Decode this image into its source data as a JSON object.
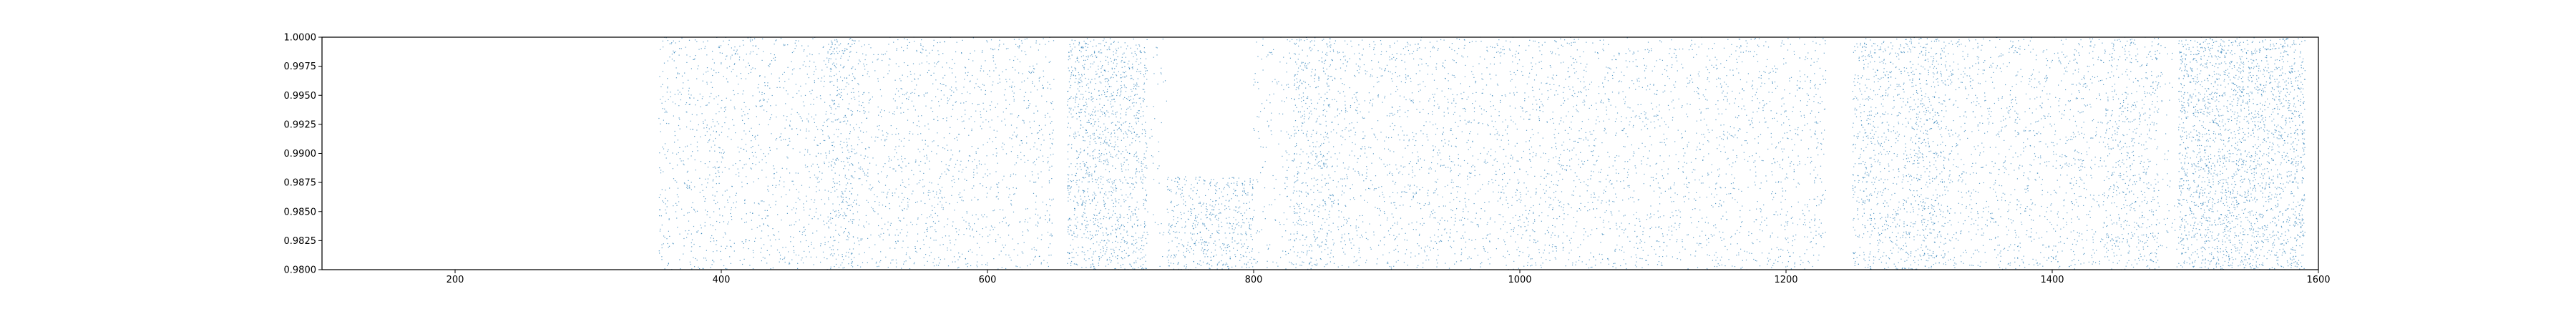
{
  "chart_data": {
    "type": "scatter",
    "title": "",
    "xlabel": "",
    "ylabel": "",
    "xlim": [
      100,
      1600
    ],
    "ylim": [
      0.98,
      1.0
    ],
    "grid": false,
    "legend": "none",
    "x_ticks": [
      200,
      400,
      600,
      800,
      1000,
      1200,
      1400,
      1600
    ],
    "x_tick_labels": [
      "200",
      "400",
      "600",
      "800",
      "1000",
      "1200",
      "1400",
      "1600"
    ],
    "y_ticks": [
      0.98,
      0.9825,
      0.985,
      0.9875,
      0.99,
      0.9925,
      0.995,
      0.9975,
      1.0
    ],
    "y_tick_labels": [
      "0.9800",
      "0.9825",
      "0.9850",
      "0.9875",
      "0.9900",
      "0.9925",
      "0.9950",
      "0.9975",
      "1.0000"
    ],
    "series": [
      {
        "color": "#1f77b4",
        "x_range": [
          353,
          1590
        ],
        "y_range": [
          0.98,
          1.0
        ],
        "approx_point_count": 14000,
        "density_bands": [
          {
            "x": [
              353,
              480
            ],
            "relative_density": 1.0
          },
          {
            "x": [
              480,
              500
            ],
            "relative_density": 2.2
          },
          {
            "x": [
              500,
              650
            ],
            "relative_density": 1.0
          },
          {
            "x": [
              660,
              720
            ],
            "relative_density": 2.6
          },
          {
            "x": [
              720,
              735
            ],
            "relative_density": 0.3
          },
          {
            "x": [
              735,
              800
            ],
            "relative_density": 2.4,
            "y": [
              0.98,
              0.988
            ]
          },
          {
            "x": [
              800,
              830
            ],
            "relative_density": 0.6
          },
          {
            "x": [
              830,
              860
            ],
            "relative_density": 2.0
          },
          {
            "x": [
              860,
              1230
            ],
            "relative_density": 1.0
          },
          {
            "x": [
              1250,
              1290
            ],
            "relative_density": 1.9
          },
          {
            "x": [
              1290,
              1320
            ],
            "relative_density": 2.3
          },
          {
            "x": [
              1320,
              1440
            ],
            "relative_density": 1.1
          },
          {
            "x": [
              1440,
              1480
            ],
            "relative_density": 1.8
          },
          {
            "x": [
              1480,
              1495
            ],
            "relative_density": 0.4
          },
          {
            "x": [
              1495,
              1590
            ],
            "relative_density": 3.0
          }
        ]
      }
    ]
  }
}
